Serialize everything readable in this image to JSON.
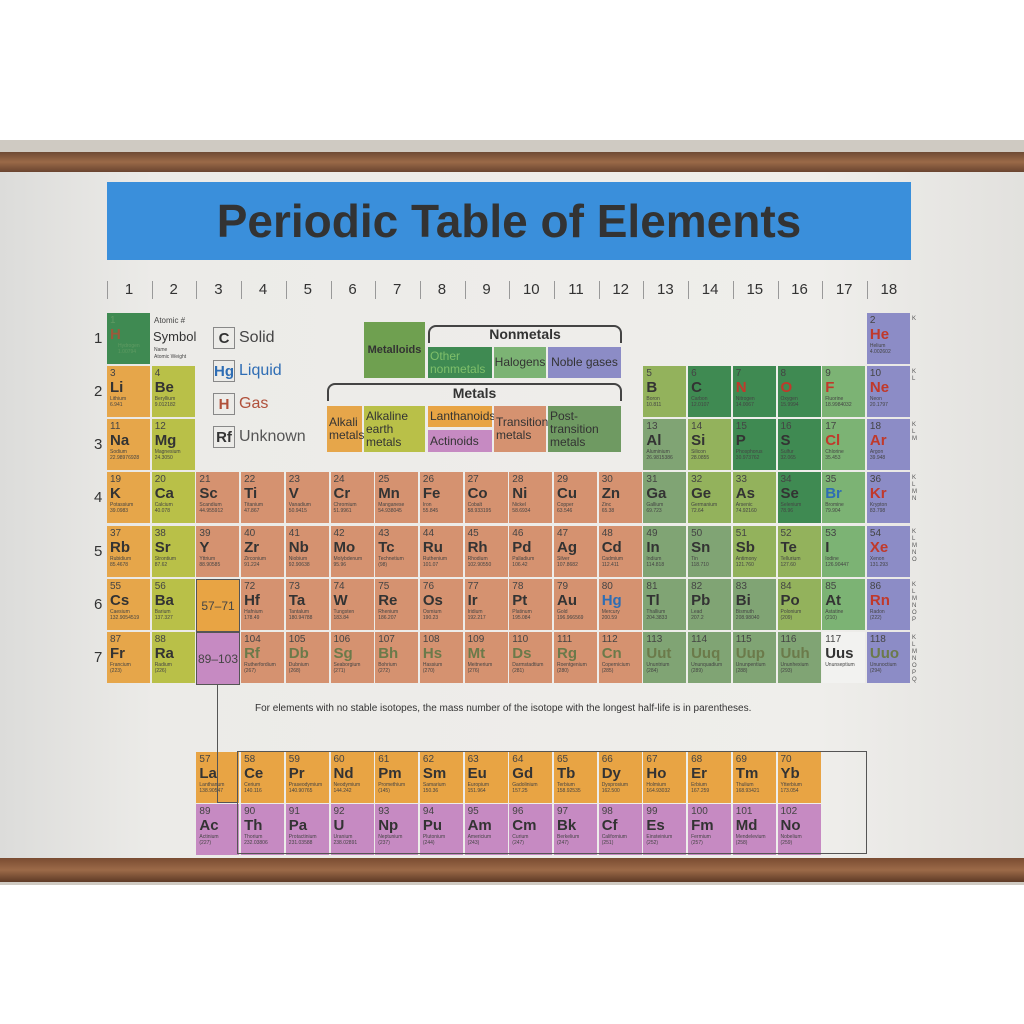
{
  "title": "Periodic Table of Elements",
  "groups": [
    "1",
    "2",
    "3",
    "4",
    "5",
    "6",
    "7",
    "8",
    "9",
    "10",
    "11",
    "12",
    "13",
    "14",
    "15",
    "16",
    "17",
    "18"
  ],
  "periods": [
    "1",
    "2",
    "3",
    "4",
    "5",
    "6",
    "7"
  ],
  "key": {
    "atomic_number": "Atomic #",
    "symbol": "Symbol",
    "name": "Name",
    "weight": "Atomic Weight"
  },
  "states": [
    {
      "sym": "C",
      "label": "Solid",
      "color": "#444444"
    },
    {
      "sym": "Hg",
      "label": "Liquid",
      "color": "#2e6db4"
    },
    {
      "sym": "H",
      "label": "Gas",
      "color": "#b0503a"
    },
    {
      "sym": "Rf",
      "label": "Unknown",
      "color": "#555555"
    }
  ],
  "legend": {
    "metalloids": "Metalloids",
    "nonmetals": "Nonmetals",
    "other_nonmetals": "Other nonmetals",
    "halogens": "Halogens",
    "noble_gases": "Noble gases",
    "metals": "Metals",
    "alkali": "Alkali metals",
    "alkaline": "Alkaline earth metals",
    "lanthanoids": "Lanthanoids",
    "actinoids": "Actinoids",
    "transition": "Transition metals",
    "post_transition": "Post-transition metals"
  },
  "colors": {
    "alk": "#e6a64a",
    "ae": "#b9c048",
    "tm": "#d59270",
    "pt": "#80a474",
    "md": "#93b25c",
    "nm": "#3f8a52",
    "hal": "#7cb374",
    "nob": "#8c8cc6",
    "lan": "#e8a444",
    "act": "#c68ac2",
    "unk": "#f2f2f0"
  },
  "ranges": {
    "lanthanoid": "57–71",
    "actinoid": "89–103"
  },
  "note": "For elements with no stable isotopes, the mass number of the isotope with the longest half-life is in parentheses.",
  "shells": [
    "K",
    "K L",
    "K L M",
    "K L M N",
    "K L M N O",
    "K L M N O P",
    "K L M N O P Q"
  ],
  "elements": [
    {
      "n": 1,
      "s": "H",
      "name": "Hydrogen",
      "w": "1.00794",
      "c": "nm",
      "st": "gas"
    },
    {
      "n": 2,
      "s": "He",
      "name": "Helium",
      "w": "4.002602",
      "c": "nob",
      "st": "gas"
    },
    {
      "n": 3,
      "s": "Li",
      "name": "Lithium",
      "w": "6.941",
      "c": "alk"
    },
    {
      "n": 4,
      "s": "Be",
      "name": "Beryllium",
      "w": "9.012182",
      "c": "ae"
    },
    {
      "n": 5,
      "s": "B",
      "name": "Boron",
      "w": "10.811",
      "c": "md"
    },
    {
      "n": 6,
      "s": "C",
      "name": "Carbon",
      "w": "12.0107",
      "c": "nm"
    },
    {
      "n": 7,
      "s": "N",
      "name": "Nitrogen",
      "w": "14.0067",
      "c": "nm",
      "st": "gas"
    },
    {
      "n": 8,
      "s": "O",
      "name": "Oxygen",
      "w": "15.9994",
      "c": "nm",
      "st": "gas"
    },
    {
      "n": 9,
      "s": "F",
      "name": "Fluorine",
      "w": "18.9984032",
      "c": "hal",
      "st": "gas"
    },
    {
      "n": 10,
      "s": "Ne",
      "name": "Neon",
      "w": "20.1797",
      "c": "nob",
      "st": "gas"
    },
    {
      "n": 11,
      "s": "Na",
      "name": "Sodium",
      "w": "22.98976928",
      "c": "alk"
    },
    {
      "n": 12,
      "s": "Mg",
      "name": "Magnesium",
      "w": "24.3050",
      "c": "ae"
    },
    {
      "n": 13,
      "s": "Al",
      "name": "Aluminium",
      "w": "26.9815386",
      "c": "pt"
    },
    {
      "n": 14,
      "s": "Si",
      "name": "Silicon",
      "w": "28.0855",
      "c": "md"
    },
    {
      "n": 15,
      "s": "P",
      "name": "Phosphorus",
      "w": "30.973762",
      "c": "nm"
    },
    {
      "n": 16,
      "s": "S",
      "name": "Sulfur",
      "w": "32.065",
      "c": "nm"
    },
    {
      "n": 17,
      "s": "Cl",
      "name": "Chlorine",
      "w": "35.453",
      "c": "hal",
      "st": "gas"
    },
    {
      "n": 18,
      "s": "Ar",
      "name": "Argon",
      "w": "39.948",
      "c": "nob",
      "st": "gas"
    },
    {
      "n": 19,
      "s": "K",
      "name": "Potassium",
      "w": "39.0983",
      "c": "alk"
    },
    {
      "n": 20,
      "s": "Ca",
      "name": "Calcium",
      "w": "40.078",
      "c": "ae"
    },
    {
      "n": 21,
      "s": "Sc",
      "name": "Scandium",
      "w": "44.955912",
      "c": "tm"
    },
    {
      "n": 22,
      "s": "Ti",
      "name": "Titanium",
      "w": "47.867",
      "c": "tm"
    },
    {
      "n": 23,
      "s": "V",
      "name": "Vanadium",
      "w": "50.9415",
      "c": "tm"
    },
    {
      "n": 24,
      "s": "Cr",
      "name": "Chromium",
      "w": "51.9961",
      "c": "tm"
    },
    {
      "n": 25,
      "s": "Mn",
      "name": "Manganese",
      "w": "54.938045",
      "c": "tm"
    },
    {
      "n": 26,
      "s": "Fe",
      "name": "Iron",
      "w": "55.845",
      "c": "tm"
    },
    {
      "n": 27,
      "s": "Co",
      "name": "Cobalt",
      "w": "58.933195",
      "c": "tm"
    },
    {
      "n": 28,
      "s": "Ni",
      "name": "Nickel",
      "w": "58.6934",
      "c": "tm"
    },
    {
      "n": 29,
      "s": "Cu",
      "name": "Copper",
      "w": "63.546",
      "c": "tm"
    },
    {
      "n": 30,
      "s": "Zn",
      "name": "Zinc",
      "w": "65.38",
      "c": "tm"
    },
    {
      "n": 31,
      "s": "Ga",
      "name": "Gallium",
      "w": "69.723",
      "c": "pt"
    },
    {
      "n": 32,
      "s": "Ge",
      "name": "Germanium",
      "w": "72.64",
      "c": "md"
    },
    {
      "n": 33,
      "s": "As",
      "name": "Arsenic",
      "w": "74.92160",
      "c": "md"
    },
    {
      "n": 34,
      "s": "Se",
      "name": "Selenium",
      "w": "78.96",
      "c": "nm"
    },
    {
      "n": 35,
      "s": "Br",
      "name": "Bromine",
      "w": "79.904",
      "c": "hal",
      "st": "liq"
    },
    {
      "n": 36,
      "s": "Kr",
      "name": "Krypton",
      "w": "83.798",
      "c": "nob",
      "st": "gas"
    },
    {
      "n": 37,
      "s": "Rb",
      "name": "Rubidium",
      "w": "85.4678",
      "c": "alk"
    },
    {
      "n": 38,
      "s": "Sr",
      "name": "Strontium",
      "w": "87.62",
      "c": "ae"
    },
    {
      "n": 39,
      "s": "Y",
      "name": "Yttrium",
      "w": "88.90585",
      "c": "tm"
    },
    {
      "n": 40,
      "s": "Zr",
      "name": "Zirconium",
      "w": "91.224",
      "c": "tm"
    },
    {
      "n": 41,
      "s": "Nb",
      "name": "Niobium",
      "w": "92.90638",
      "c": "tm"
    },
    {
      "n": 42,
      "s": "Mo",
      "name": "Molybdenum",
      "w": "95.96",
      "c": "tm"
    },
    {
      "n": 43,
      "s": "Tc",
      "name": "Technetium",
      "w": "(98)",
      "c": "tm"
    },
    {
      "n": 44,
      "s": "Ru",
      "name": "Ruthenium",
      "w": "101.07",
      "c": "tm"
    },
    {
      "n": 45,
      "s": "Rh",
      "name": "Rhodium",
      "w": "102.90550",
      "c": "tm"
    },
    {
      "n": 46,
      "s": "Pd",
      "name": "Palladium",
      "w": "106.42",
      "c": "tm"
    },
    {
      "n": 47,
      "s": "Ag",
      "name": "Silver",
      "w": "107.8682",
      "c": "tm"
    },
    {
      "n": 48,
      "s": "Cd",
      "name": "Cadmium",
      "w": "112.411",
      "c": "tm"
    },
    {
      "n": 49,
      "s": "In",
      "name": "Indium",
      "w": "114.818",
      "c": "pt"
    },
    {
      "n": 50,
      "s": "Sn",
      "name": "Tin",
      "w": "118.710",
      "c": "pt"
    },
    {
      "n": 51,
      "s": "Sb",
      "name": "Antimony",
      "w": "121.760",
      "c": "md"
    },
    {
      "n": 52,
      "s": "Te",
      "name": "Tellurium",
      "w": "127.60",
      "c": "md"
    },
    {
      "n": 53,
      "s": "I",
      "name": "Iodine",
      "w": "126.90447",
      "c": "hal"
    },
    {
      "n": 54,
      "s": "Xe",
      "name": "Xenon",
      "w": "131.293",
      "c": "nob",
      "st": "gas"
    },
    {
      "n": 55,
      "s": "Cs",
      "name": "Caesium",
      "w": "132.9054519",
      "c": "alk"
    },
    {
      "n": 56,
      "s": "Ba",
      "name": "Barium",
      "w": "137.327",
      "c": "ae"
    },
    {
      "n": 57,
      "s": "La",
      "name": "Lanthanum",
      "w": "138.90547",
      "c": "lan"
    },
    {
      "n": 58,
      "s": "Ce",
      "name": "Cerium",
      "w": "140.116",
      "c": "lan"
    },
    {
      "n": 59,
      "s": "Pr",
      "name": "Praseodymium",
      "w": "140.90765",
      "c": "lan"
    },
    {
      "n": 60,
      "s": "Nd",
      "name": "Neodymium",
      "w": "144.242",
      "c": "lan"
    },
    {
      "n": 61,
      "s": "Pm",
      "name": "Promethium",
      "w": "(145)",
      "c": "lan"
    },
    {
      "n": 62,
      "s": "Sm",
      "name": "Samarium",
      "w": "150.36",
      "c": "lan"
    },
    {
      "n": 63,
      "s": "Eu",
      "name": "Europium",
      "w": "151.964",
      "c": "lan"
    },
    {
      "n": 64,
      "s": "Gd",
      "name": "Gadolinium",
      "w": "157.25",
      "c": "lan"
    },
    {
      "n": 65,
      "s": "Tb",
      "name": "Terbium",
      "w": "158.92535",
      "c": "lan"
    },
    {
      "n": 66,
      "s": "Dy",
      "name": "Dysprosium",
      "w": "162.500",
      "c": "lan"
    },
    {
      "n": 67,
      "s": "Ho",
      "name": "Holmium",
      "w": "164.93032",
      "c": "lan"
    },
    {
      "n": 68,
      "s": "Er",
      "name": "Erbium",
      "w": "167.259",
      "c": "lan"
    },
    {
      "n": 69,
      "s": "Tm",
      "name": "Thulium",
      "w": "168.93421",
      "c": "lan"
    },
    {
      "n": 70,
      "s": "Yb",
      "name": "Ytterbium",
      "w": "173.054",
      "c": "lan"
    },
    {
      "n": 72,
      "s": "Hf",
      "name": "Hafnium",
      "w": "178.49",
      "c": "tm"
    },
    {
      "n": 73,
      "s": "Ta",
      "name": "Tantalum",
      "w": "180.94788",
      "c": "tm"
    },
    {
      "n": 74,
      "s": "W",
      "name": "Tungsten",
      "w": "183.84",
      "c": "tm"
    },
    {
      "n": 75,
      "s": "Re",
      "name": "Rhenium",
      "w": "186.207",
      "c": "tm"
    },
    {
      "n": 76,
      "s": "Os",
      "name": "Osmium",
      "w": "190.23",
      "c": "tm"
    },
    {
      "n": 77,
      "s": "Ir",
      "name": "Iridium",
      "w": "192.217",
      "c": "tm"
    },
    {
      "n": 78,
      "s": "Pt",
      "name": "Platinum",
      "w": "195.084",
      "c": "tm"
    },
    {
      "n": 79,
      "s": "Au",
      "name": "Gold",
      "w": "196.966569",
      "c": "tm"
    },
    {
      "n": 80,
      "s": "Hg",
      "name": "Mercury",
      "w": "200.59",
      "c": "tm",
      "st": "liq"
    },
    {
      "n": 81,
      "s": "Tl",
      "name": "Thallium",
      "w": "204.3833",
      "c": "pt"
    },
    {
      "n": 82,
      "s": "Pb",
      "name": "Lead",
      "w": "207.2",
      "c": "pt"
    },
    {
      "n": 83,
      "s": "Bi",
      "name": "Bismuth",
      "w": "208.98040",
      "c": "pt"
    },
    {
      "n": 84,
      "s": "Po",
      "name": "Polonium",
      "w": "(209)",
      "c": "md"
    },
    {
      "n": 85,
      "s": "At",
      "name": "Astatine",
      "w": "(210)",
      "c": "hal"
    },
    {
      "n": 86,
      "s": "Rn",
      "name": "Radon",
      "w": "(222)",
      "c": "nob",
      "st": "gas"
    },
    {
      "n": 87,
      "s": "Fr",
      "name": "Francium",
      "w": "(223)",
      "c": "alk"
    },
    {
      "n": 88,
      "s": "Ra",
      "name": "Radium",
      "w": "(226)",
      "c": "ae"
    },
    {
      "n": 89,
      "s": "Ac",
      "name": "Actinium",
      "w": "(227)",
      "c": "act"
    },
    {
      "n": 90,
      "s": "Th",
      "name": "Thorium",
      "w": "232.03806",
      "c": "act"
    },
    {
      "n": 91,
      "s": "Pa",
      "name": "Protactinium",
      "w": "231.03588",
      "c": "act"
    },
    {
      "n": 92,
      "s": "U",
      "name": "Uranium",
      "w": "238.02891",
      "c": "act"
    },
    {
      "n": 93,
      "s": "Np",
      "name": "Neptunium",
      "w": "(237)",
      "c": "act"
    },
    {
      "n": 94,
      "s": "Pu",
      "name": "Plutonium",
      "w": "(244)",
      "c": "act"
    },
    {
      "n": 95,
      "s": "Am",
      "name": "Americium",
      "w": "(243)",
      "c": "act"
    },
    {
      "n": 96,
      "s": "Cm",
      "name": "Curium",
      "w": "(247)",
      "c": "act"
    },
    {
      "n": 97,
      "s": "Bk",
      "name": "Berkelium",
      "w": "(247)",
      "c": "act"
    },
    {
      "n": 98,
      "s": "Cf",
      "name": "Californium",
      "w": "(251)",
      "c": "act"
    },
    {
      "n": 99,
      "s": "Es",
      "name": "Einsteinium",
      "w": "(252)",
      "c": "act"
    },
    {
      "n": 100,
      "s": "Fm",
      "name": "Fermium",
      "w": "(257)",
      "c": "act"
    },
    {
      "n": 101,
      "s": "Md",
      "name": "Mendelevium",
      "w": "(258)",
      "c": "act"
    },
    {
      "n": 102,
      "s": "No",
      "name": "Nobelium",
      "w": "(259)",
      "c": "act"
    },
    {
      "n": 104,
      "s": "Rf",
      "name": "Rutherfordium",
      "w": "(267)",
      "c": "tm",
      "st": "unk"
    },
    {
      "n": 105,
      "s": "Db",
      "name": "Dubnium",
      "w": "(268)",
      "c": "tm",
      "st": "unk"
    },
    {
      "n": 106,
      "s": "Sg",
      "name": "Seaborgium",
      "w": "(271)",
      "c": "tm",
      "st": "unk"
    },
    {
      "n": 107,
      "s": "Bh",
      "name": "Bohrium",
      "w": "(272)",
      "c": "tm",
      "st": "unk"
    },
    {
      "n": 108,
      "s": "Hs",
      "name": "Hassium",
      "w": "(270)",
      "c": "tm",
      "st": "unk"
    },
    {
      "n": 109,
      "s": "Mt",
      "name": "Meitnerium",
      "w": "(276)",
      "c": "tm",
      "st": "unk"
    },
    {
      "n": 110,
      "s": "Ds",
      "name": "Darmstadtium",
      "w": "(281)",
      "c": "tm",
      "st": "unk"
    },
    {
      "n": 111,
      "s": "Rg",
      "name": "Roentgenium",
      "w": "(280)",
      "c": "tm",
      "st": "unk"
    },
    {
      "n": 112,
      "s": "Cn",
      "name": "Copernicium",
      "w": "(285)",
      "c": "tm",
      "st": "unk"
    },
    {
      "n": 113,
      "s": "Uut",
      "name": "Ununtrium",
      "w": "(284)",
      "c": "pt",
      "st": "unk"
    },
    {
      "n": 114,
      "s": "Uuq",
      "name": "Ununquadium",
      "w": "(289)",
      "c": "pt",
      "st": "unk"
    },
    {
      "n": 115,
      "s": "Uup",
      "name": "Ununpentium",
      "w": "(288)",
      "c": "pt",
      "st": "unk"
    },
    {
      "n": 116,
      "s": "Uuh",
      "name": "Ununhexium",
      "w": "(293)",
      "c": "pt",
      "st": "unk"
    },
    {
      "n": 117,
      "s": "Uus",
      "name": "Ununseptium",
      "w": "",
      "c": "unk"
    },
    {
      "n": 118,
      "s": "Uuo",
      "name": "Ununoctium",
      "w": "(294)",
      "c": "nob",
      "st": "unk"
    }
  ]
}
